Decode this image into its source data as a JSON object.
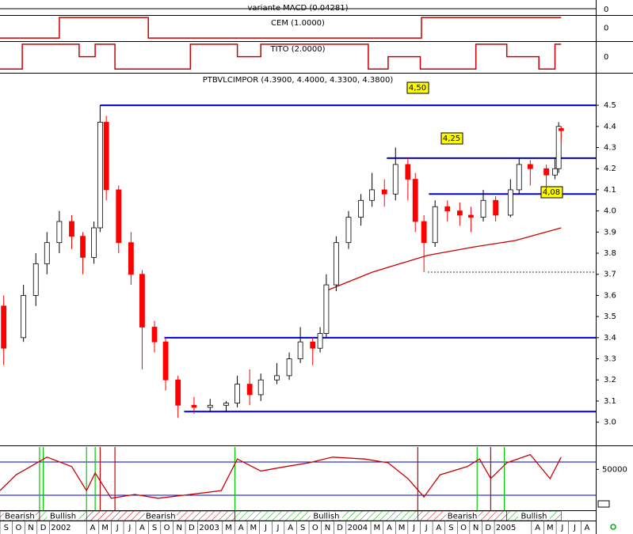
{
  "chart_data": {
    "type": "candlestick",
    "title": "PTBVLCIMPOR (4.3900, 4.4000, 4.3300, 4.3800)",
    "x": [
      -0.2,
      1.4,
      2.4,
      3.3,
      4.3,
      5.3,
      6.2,
      7.1,
      7.6,
      8.1,
      9.1,
      10.1,
      11.0,
      12.0,
      12.9,
      13.9,
      15.2,
      16.5,
      17.8,
      18.7,
      19.7,
      20.6,
      21.9,
      22.9,
      23.8,
      24.8,
      25.4,
      25.9,
      26.7,
      27.7,
      28.7,
      29.6,
      30.6,
      31.5,
      32.5,
      33.1,
      33.8,
      34.7,
      35.7,
      36.7,
      37.6,
      38.6,
      39.6,
      40.8,
      41.5,
      42.4,
      43.7,
      44.4,
      44.7,
      44.9
    ],
    "open": [
      3.55,
      3.4,
      3.6,
      3.75,
      3.85,
      3.95,
      3.88,
      3.78,
      3.92,
      4.42,
      4.1,
      3.85,
      3.7,
      3.45,
      3.38,
      3.2,
      3.08,
      3.07,
      3.08,
      3.09,
      3.18,
      3.13,
      3.2,
      3.22,
      3.3,
      3.38,
      3.35,
      3.42,
      3.65,
      3.85,
      3.97,
      4.05,
      4.1,
      4.08,
      4.22,
      4.15,
      3.95,
      3.85,
      4.02,
      4.0,
      3.98,
      3.97,
      4.05,
      3.98,
      4.1,
      4.22,
      4.2,
      4.17,
      4.2,
      4.39
    ],
    "high": [
      3.6,
      3.65,
      3.8,
      3.9,
      4.0,
      3.98,
      3.9,
      3.95,
      4.5,
      4.45,
      4.12,
      3.9,
      3.72,
      3.48,
      3.4,
      3.22,
      3.12,
      3.11,
      3.1,
      3.22,
      3.25,
      3.23,
      3.28,
      3.33,
      3.45,
      3.4,
      3.45,
      3.7,
      3.88,
      4.0,
      4.08,
      4.18,
      4.15,
      4.3,
      4.25,
      4.18,
      3.98,
      4.05,
      4.05,
      4.04,
      4.02,
      4.1,
      4.07,
      4.15,
      4.25,
      4.24,
      4.22,
      4.25,
      4.42,
      4.4
    ],
    "low": [
      3.27,
      3.38,
      3.55,
      3.7,
      3.8,
      3.82,
      3.7,
      3.75,
      3.9,
      4.05,
      3.8,
      3.65,
      3.25,
      3.33,
      3.15,
      3.02,
      3.04,
      3.05,
      3.05,
      3.07,
      3.08,
      3.1,
      3.18,
      3.2,
      3.28,
      3.27,
      3.33,
      3.4,
      3.62,
      3.82,
      3.93,
      4.02,
      4.02,
      4.05,
      4.05,
      3.9,
      3.71,
      3.83,
      3.95,
      3.93,
      3.9,
      3.95,
      3.95,
      3.97,
      4.08,
      4.12,
      4.08,
      4.15,
      4.18,
      4.33
    ],
    "close": [
      3.35,
      3.6,
      3.75,
      3.85,
      3.95,
      3.88,
      3.78,
      3.92,
      4.42,
      4.1,
      3.85,
      3.7,
      3.45,
      3.38,
      3.2,
      3.08,
      3.07,
      3.08,
      3.09,
      3.18,
      3.13,
      3.2,
      3.22,
      3.3,
      3.38,
      3.35,
      3.42,
      3.65,
      3.85,
      3.97,
      4.05,
      4.1,
      4.08,
      4.22,
      4.15,
      3.95,
      3.85,
      4.02,
      4.0,
      3.98,
      3.97,
      4.05,
      3.98,
      4.1,
      4.22,
      4.2,
      4.17,
      4.2,
      4.4,
      4.38
    ],
    "up_color": "#ffffff",
    "down_color": "#ff0000",
    "xlim": [
      -0.5,
      47.7
    ],
    "ylim": [
      2.89,
      4.654
    ],
    "yticks": [
      {
        "value": 3,
        "label": "3.0"
      },
      3.1,
      3.2,
      3.3,
      3.4,
      3.5,
      3.6,
      3.7,
      3.8,
      3.9,
      {
        "value": 4,
        "label": "4.0"
      },
      4.1,
      4.2,
      4.3,
      4.4,
      4.5
    ],
    "month_labels": [
      "S",
      "O",
      "N",
      "D",
      "2002",
      null,
      null,
      "A",
      "M",
      "J",
      "J",
      "A",
      "S",
      "O",
      "N",
      "D",
      "2003",
      null,
      "M",
      "A",
      "M",
      "J",
      "J",
      "A",
      "S",
      "O",
      "N",
      "D",
      "2004",
      null,
      "M",
      "A",
      "M",
      "J",
      "J",
      "A",
      "S",
      "O",
      "N",
      "D",
      "2005",
      null,
      null,
      "A",
      "M",
      "J",
      "J",
      "A"
    ],
    "moving_average": {
      "color": "#cc0000",
      "x": [
        25.8,
        29.6,
        34.1,
        37.9,
        41.2,
        44.9
      ],
      "values": [
        3.62,
        3.71,
        3.79,
        3.83,
        3.86,
        3.92
      ]
    },
    "levels": [
      {
        "value": 4.5,
        "from": 7.6,
        "color": "#0000cc",
        "value_label": "4,50"
      },
      {
        "value": 4.25,
        "from": 30.8,
        "color": "#0000cc",
        "value_label": "4,25"
      },
      {
        "value": 4.08,
        "from": 34.2,
        "color": "#0000cc",
        "value_label": "4,08"
      },
      {
        "value": 3.4,
        "from": 12.8,
        "color": "#0000cc"
      },
      {
        "value": 3.05,
        "from": 14.4,
        "color": "#0000cc"
      },
      {
        "value": 3.71,
        "from": 34.1,
        "color": "#333333",
        "dashed": true
      }
    ],
    "panels": [
      {
        "title": "variante MACD (0.04281)",
        "axis_label": "0"
      },
      {
        "title": "CEM (1.0000)",
        "axis_label": "0",
        "color": "#cc0000",
        "ylim": [
          -0.15,
          1.12
        ],
        "x": [
          -0.5,
          4.3,
          11.5,
          33.6,
          44.9
        ],
        "values": [
          0,
          1,
          0,
          1,
          1
        ]
      },
      {
        "title": "TITO (2.0000)",
        "axis_label": "0",
        "color": "#cc0000",
        "ylim": [
          -0.3,
          2.25
        ],
        "x": [
          -0.5,
          1.3,
          5.9,
          7.2,
          8.8,
          14.9,
          18.7,
          20.6,
          29.3,
          30.9,
          33.5,
          38.0,
          40.5,
          43.1,
          44.4,
          44.9
        ],
        "values": [
          0,
          2,
          1,
          2,
          0,
          2,
          1,
          2,
          0,
          1,
          0,
          2,
          1,
          0,
          2,
          2
        ]
      }
    ],
    "oscillator": {
      "color": "#cc0000",
      "ylim": [
        0,
        100
      ],
      "x": [
        -0.5,
        0.8,
        3.3,
        5.3,
        6.5,
        7.2,
        8.5,
        10.4,
        12.3,
        14.9,
        17.4,
        18.7,
        20.6,
        22.6,
        24.5,
        26.4,
        29.0,
        30.9,
        32.5,
        33.8,
        35.1,
        37.3,
        38.3,
        39.2,
        40.5,
        42.4,
        44.0,
        44.9
      ],
      "values": [
        31,
        56,
        84,
        69,
        31,
        59,
        19,
        25,
        19,
        25,
        31,
        81,
        62,
        69,
        75,
        84,
        81,
        75,
        50,
        21,
        56,
        69,
        81,
        50,
        75,
        88,
        50,
        84
      ]
    },
    "signals": {
      "x": [
        2.7,
        3.0,
        6.5,
        7.2,
        7.6,
        8.8,
        18.5,
        33.3,
        38.1,
        39.2,
        40.3
      ],
      "colors": [
        "#00cc00",
        "#00cc00",
        "#00cc00",
        "#00cc00",
        "#cc0000",
        "#cc0000",
        "#00cc00",
        "#cc0000",
        "#00cc00",
        "#cc0000",
        "#00cc00"
      ]
    },
    "volume_ylim": [
      0,
      60000
    ],
    "volume_ticks": [
      50000
    ],
    "trend_bands": [
      {
        "name": "Bearish",
        "from": -0.5,
        "to": 2.7,
        "color": "#cc0000"
      },
      {
        "name": "Bullish",
        "from": 2.7,
        "to": 6.5,
        "color": "#00aa00"
      },
      {
        "name": "Bearish",
        "from": 6.5,
        "to": 18.5,
        "color": "#cc0000"
      },
      {
        "name": "Bullish",
        "from": 18.5,
        "to": 33.3,
        "color": "#00aa00"
      },
      {
        "name": "Bearish",
        "from": 33.3,
        "to": 40.5,
        "color": "#cc0000"
      },
      {
        "name": "Bullish",
        "from": 40.5,
        "to": 44.9,
        "color": "#00aa00"
      }
    ]
  }
}
